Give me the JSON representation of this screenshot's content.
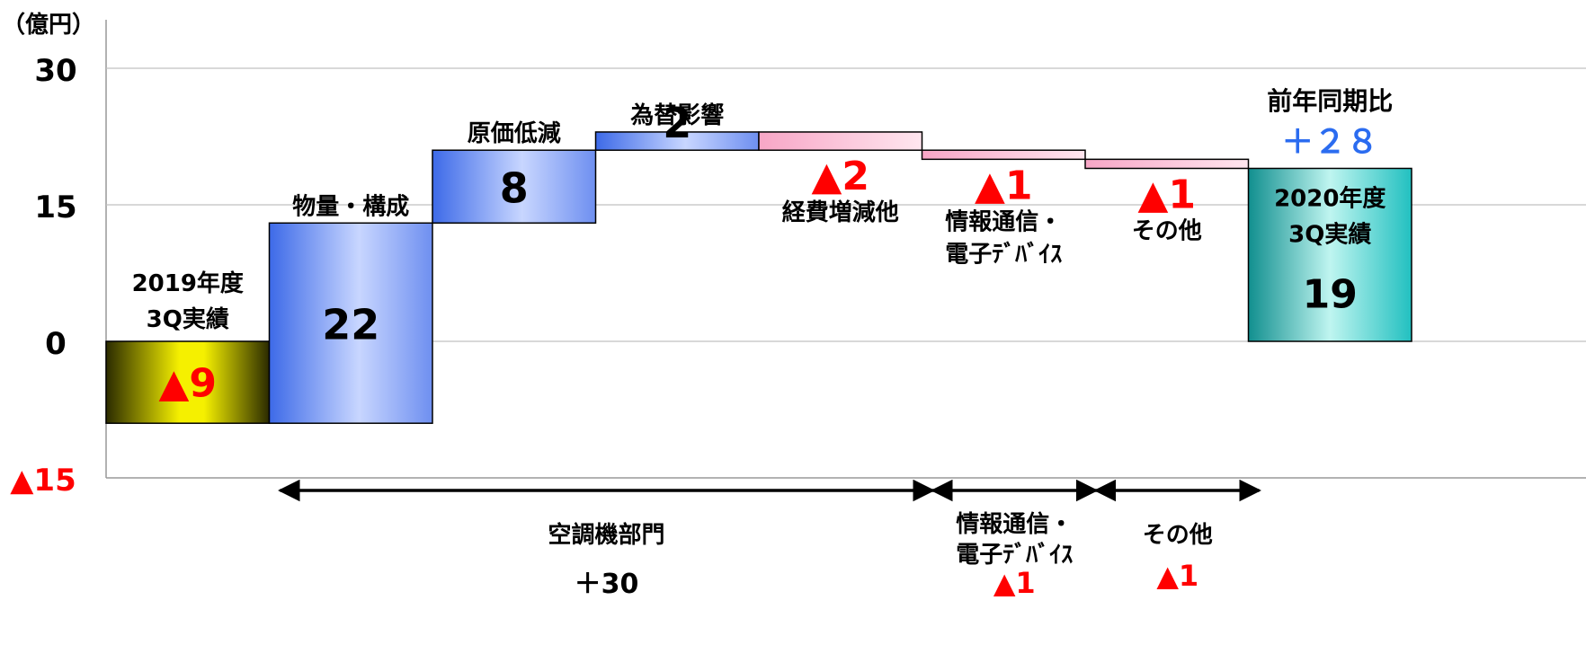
{
  "chart_data": {
    "type": "waterfall",
    "unit_label": "（億円）",
    "ylim": [
      -15,
      35
    ],
    "y_ticks": [
      {
        "value": 30,
        "label": "30",
        "negative": false
      },
      {
        "value": 15,
        "label": "15",
        "negative": false
      },
      {
        "value": 0,
        "label": "0",
        "negative": false
      },
      {
        "value": -15,
        "label": "▲15",
        "negative": true
      }
    ],
    "grid": true,
    "bars": [
      {
        "label_lines": [
          "2019年度",
          "3Q実績"
        ],
        "start": 0,
        "end": -9,
        "value_label": "▲9",
        "style": "start",
        "label_pos": "above-zero",
        "value_pos": "inside-lower",
        "fill": "#f5f000"
      },
      {
        "label_lines": [
          "物量・構成"
        ],
        "start": -9,
        "end": 13,
        "value_label": "22",
        "style": "up",
        "label_pos": "above",
        "value_pos": "inside",
        "fill": "#4f7cf0"
      },
      {
        "label_lines": [
          "原価低減"
        ],
        "start": 13,
        "end": 21,
        "value_label": "8",
        "style": "up",
        "label_pos": "above",
        "value_pos": "inside",
        "fill": "#4f7cf0"
      },
      {
        "label_lines": [
          "為替影響"
        ],
        "start": 21,
        "end": 23,
        "value_label": "2",
        "style": "up",
        "label_pos": "above",
        "value_pos": "above-bar",
        "fill": "#4f7cf0"
      },
      {
        "label_lines": [
          "経費増減他"
        ],
        "start": 23,
        "end": 21,
        "value_label": "▲2",
        "style": "down",
        "label_pos": "below",
        "value_pos": "below-bar",
        "fill": "#f7a0c0"
      },
      {
        "label_lines": [
          "情報通信・",
          "電子ﾃﾞﾊﾞｲｽ"
        ],
        "start": 21,
        "end": 20,
        "value_label": "▲1",
        "style": "down",
        "label_pos": "below",
        "value_pos": "below-bar",
        "fill": "#f7a0c0"
      },
      {
        "label_lines": [
          "その他"
        ],
        "start": 20,
        "end": 19,
        "value_label": "▲1",
        "style": "down",
        "label_pos": "below",
        "value_pos": "below-bar",
        "fill": "#f7a0c0"
      },
      {
        "label_lines": [
          "2020年度",
          "3Q実績"
        ],
        "start": 0,
        "end": 19,
        "value_label": "19",
        "style": "end",
        "label_pos": "inside-top",
        "value_pos": "inside-lower",
        "fill": "#20b8b8"
      }
    ],
    "yoy": {
      "label": "前年同期比",
      "value": "＋２８",
      "color": "#2b6cf0"
    },
    "segments": [
      {
        "name": "空調機部門",
        "value": "＋30",
        "from_bar": 1,
        "to_bar": 4,
        "negative": false
      },
      {
        "name_lines": [
          "情報通信・",
          "電子ﾃﾞﾊﾞｲｽ"
        ],
        "value": "▲1",
        "from_bar": 5,
        "to_bar": 5,
        "negative": true
      },
      {
        "name": "その他",
        "value": "▲1",
        "from_bar": 6,
        "to_bar": 6,
        "negative": true
      }
    ],
    "colors": {
      "negative_value": "#ff0000",
      "positive_text": "#000000",
      "grid": "#c0c0c0",
      "axis": "#999999"
    }
  }
}
